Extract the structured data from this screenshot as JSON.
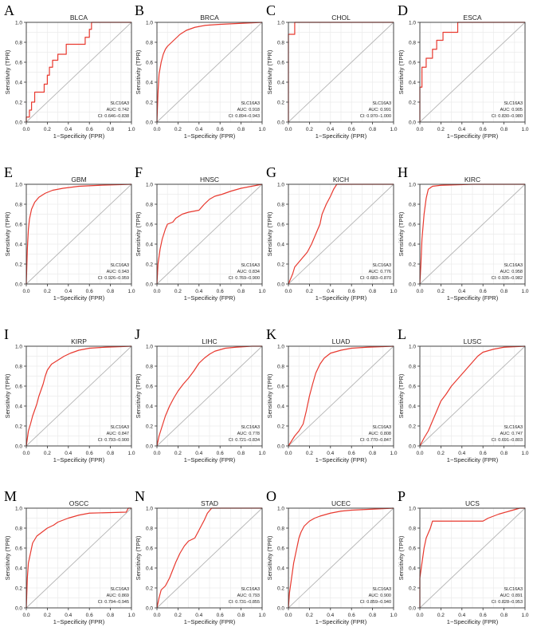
{
  "figure": {
    "xlabel": "1−Specificity (FPR)",
    "ylabel": "Sensitivity (TPR)",
    "ticks": [
      "0.0",
      "0.2",
      "0.4",
      "0.6",
      "0.8",
      "1.0"
    ],
    "gene": "SLC16A3",
    "colors": {
      "curve": "#e8392f",
      "diagonal": "#b5b5b5",
      "grid": "#ebebeb",
      "frame": "#333333"
    }
  },
  "chart_data": [
    {
      "type": "line",
      "letter": "A",
      "title": "BLCA",
      "auc": "AUC: 0.742",
      "ci": "CI: 0.646−0.838",
      "xlim": [
        0,
        1
      ],
      "ylim": [
        0,
        1
      ],
      "points": [
        [
          0,
          0
        ],
        [
          0,
          0.05
        ],
        [
          0.03,
          0.05
        ],
        [
          0.03,
          0.12
        ],
        [
          0.05,
          0.12
        ],
        [
          0.05,
          0.2
        ],
        [
          0.08,
          0.2
        ],
        [
          0.08,
          0.3
        ],
        [
          0.17,
          0.3
        ],
        [
          0.17,
          0.38
        ],
        [
          0.2,
          0.38
        ],
        [
          0.2,
          0.47
        ],
        [
          0.22,
          0.47
        ],
        [
          0.22,
          0.55
        ],
        [
          0.25,
          0.55
        ],
        [
          0.25,
          0.62
        ],
        [
          0.3,
          0.62
        ],
        [
          0.3,
          0.68
        ],
        [
          0.38,
          0.68
        ],
        [
          0.38,
          0.78
        ],
        [
          0.56,
          0.78
        ],
        [
          0.56,
          0.85
        ],
        [
          0.6,
          0.85
        ],
        [
          0.6,
          0.93
        ],
        [
          0.62,
          0.93
        ],
        [
          0.62,
          1
        ],
        [
          1,
          1
        ]
      ]
    },
    {
      "type": "line",
      "letter": "B",
      "title": "BRCA",
      "auc": "AUC: 0.918",
      "ci": "CI: 0.894−0.943",
      "xlim": [
        0,
        1
      ],
      "ylim": [
        0,
        1
      ],
      "points": [
        [
          0,
          0
        ],
        [
          0.01,
          0.3
        ],
        [
          0.02,
          0.48
        ],
        [
          0.04,
          0.6
        ],
        [
          0.06,
          0.68
        ],
        [
          0.08,
          0.73
        ],
        [
          0.1,
          0.76
        ],
        [
          0.14,
          0.8
        ],
        [
          0.18,
          0.84
        ],
        [
          0.22,
          0.88
        ],
        [
          0.28,
          0.92
        ],
        [
          0.36,
          0.95
        ],
        [
          0.46,
          0.97
        ],
        [
          0.6,
          0.98
        ],
        [
          0.8,
          0.99
        ],
        [
          1,
          1
        ]
      ]
    },
    {
      "type": "line",
      "letter": "C",
      "title": "CHOL",
      "auc": "AUC: 0.991",
      "ci": "CI: 0.970−1.000",
      "xlim": [
        0,
        1
      ],
      "ylim": [
        0,
        1
      ],
      "points": [
        [
          0,
          0
        ],
        [
          0,
          0.88
        ],
        [
          0.06,
          0.88
        ],
        [
          0.06,
          1
        ],
        [
          1,
          1
        ]
      ]
    },
    {
      "type": "line",
      "letter": "D",
      "title": "ESCA",
      "auc": "AUC: 0.905",
      "ci": "CI: 0.830−0.980",
      "xlim": [
        0,
        1
      ],
      "ylim": [
        0,
        1
      ],
      "points": [
        [
          0,
          0
        ],
        [
          0,
          0.35
        ],
        [
          0.02,
          0.35
        ],
        [
          0.02,
          0.55
        ],
        [
          0.06,
          0.55
        ],
        [
          0.06,
          0.64
        ],
        [
          0.12,
          0.64
        ],
        [
          0.12,
          0.73
        ],
        [
          0.16,
          0.73
        ],
        [
          0.16,
          0.82
        ],
        [
          0.22,
          0.82
        ],
        [
          0.22,
          0.9
        ],
        [
          0.36,
          0.9
        ],
        [
          0.36,
          1
        ],
        [
          1,
          1
        ]
      ]
    },
    {
      "type": "line",
      "letter": "E",
      "title": "GBM",
      "auc": "AUC: 0.943",
      "ci": "CI: 0.926−0.959",
      "xlim": [
        0,
        1
      ],
      "ylim": [
        0,
        1
      ],
      "points": [
        [
          0,
          0
        ],
        [
          0.01,
          0.35
        ],
        [
          0.02,
          0.55
        ],
        [
          0.03,
          0.65
        ],
        [
          0.05,
          0.75
        ],
        [
          0.08,
          0.82
        ],
        [
          0.12,
          0.87
        ],
        [
          0.18,
          0.91
        ],
        [
          0.25,
          0.94
        ],
        [
          0.35,
          0.96
        ],
        [
          0.5,
          0.98
        ],
        [
          0.7,
          0.99
        ],
        [
          1,
          1
        ]
      ]
    },
    {
      "type": "line",
      "letter": "F",
      "title": "HNSC",
      "auc": "AUC: 0.834",
      "ci": "CI: 0.769−0.900",
      "xlim": [
        0,
        1
      ],
      "ylim": [
        0,
        1
      ],
      "points": [
        [
          0,
          0
        ],
        [
          0.01,
          0.2
        ],
        [
          0.03,
          0.35
        ],
        [
          0.05,
          0.45
        ],
        [
          0.08,
          0.55
        ],
        [
          0.1,
          0.6
        ],
        [
          0.15,
          0.62
        ],
        [
          0.18,
          0.66
        ],
        [
          0.24,
          0.7
        ],
        [
          0.3,
          0.72
        ],
        [
          0.4,
          0.74
        ],
        [
          0.45,
          0.8
        ],
        [
          0.5,
          0.85
        ],
        [
          0.55,
          0.88
        ],
        [
          0.62,
          0.9
        ],
        [
          0.7,
          0.93
        ],
        [
          0.8,
          0.96
        ],
        [
          0.9,
          0.98
        ],
        [
          1,
          1
        ]
      ]
    },
    {
      "type": "line",
      "letter": "G",
      "title": "KICH",
      "auc": "AUC: 0.776",
      "ci": "CI: 0.683−0.870",
      "xlim": [
        0,
        1
      ],
      "ylim": [
        0,
        1
      ],
      "points": [
        [
          0,
          0
        ],
        [
          0.04,
          0.1
        ],
        [
          0.06,
          0.17
        ],
        [
          0.1,
          0.22
        ],
        [
          0.14,
          0.27
        ],
        [
          0.18,
          0.32
        ],
        [
          0.22,
          0.4
        ],
        [
          0.26,
          0.5
        ],
        [
          0.3,
          0.6
        ],
        [
          0.32,
          0.7
        ],
        [
          0.36,
          0.8
        ],
        [
          0.4,
          0.88
        ],
        [
          0.43,
          0.95
        ],
        [
          0.46,
          1
        ],
        [
          1,
          1
        ]
      ]
    },
    {
      "type": "line",
      "letter": "H",
      "title": "KIRC",
      "auc": "AUC: 0.958",
      "ci": "CI: 0.935−0.982",
      "xlim": [
        0,
        1
      ],
      "ylim": [
        0,
        1
      ],
      "points": [
        [
          0,
          0
        ],
        [
          0.01,
          0.2
        ],
        [
          0.02,
          0.45
        ],
        [
          0.04,
          0.7
        ],
        [
          0.06,
          0.86
        ],
        [
          0.08,
          0.95
        ],
        [
          0.12,
          0.98
        ],
        [
          0.2,
          0.99
        ],
        [
          0.5,
          1
        ],
        [
          1,
          1
        ]
      ]
    },
    {
      "type": "line",
      "letter": "I",
      "title": "KIRP",
      "auc": "AUC: 0.847",
      "ci": "CI: 0.793−0.900",
      "xlim": [
        0,
        1
      ],
      "ylim": [
        0,
        1
      ],
      "points": [
        [
          0,
          0
        ],
        [
          0.02,
          0.15
        ],
        [
          0.04,
          0.22
        ],
        [
          0.06,
          0.3
        ],
        [
          0.08,
          0.36
        ],
        [
          0.1,
          0.42
        ],
        [
          0.12,
          0.5
        ],
        [
          0.14,
          0.56
        ],
        [
          0.16,
          0.62
        ],
        [
          0.18,
          0.7
        ],
        [
          0.2,
          0.76
        ],
        [
          0.24,
          0.82
        ],
        [
          0.3,
          0.86
        ],
        [
          0.36,
          0.9
        ],
        [
          0.42,
          0.93
        ],
        [
          0.5,
          0.96
        ],
        [
          0.6,
          0.98
        ],
        [
          0.75,
          0.99
        ],
        [
          1,
          1
        ]
      ]
    },
    {
      "type": "line",
      "letter": "J",
      "title": "LIHC",
      "auc": "AUC: 0.778",
      "ci": "CI: 0.721−0.834",
      "xlim": [
        0,
        1
      ],
      "ylim": [
        0,
        1
      ],
      "points": [
        [
          0,
          0
        ],
        [
          0.02,
          0.1
        ],
        [
          0.05,
          0.2
        ],
        [
          0.08,
          0.3
        ],
        [
          0.12,
          0.4
        ],
        [
          0.16,
          0.48
        ],
        [
          0.2,
          0.55
        ],
        [
          0.25,
          0.62
        ],
        [
          0.3,
          0.68
        ],
        [
          0.35,
          0.75
        ],
        [
          0.4,
          0.83
        ],
        [
          0.45,
          0.88
        ],
        [
          0.5,
          0.92
        ],
        [
          0.55,
          0.95
        ],
        [
          0.65,
          0.98
        ],
        [
          0.75,
          0.99
        ],
        [
          0.9,
          1
        ],
        [
          1,
          1
        ]
      ]
    },
    {
      "type": "line",
      "letter": "K",
      "title": "LUAD",
      "auc": "AUC: 0.808",
      "ci": "CI: 0.770−0.847",
      "xlim": [
        0,
        1
      ],
      "ylim": [
        0,
        1
      ],
      "points": [
        [
          0,
          0
        ],
        [
          0.03,
          0.05
        ],
        [
          0.06,
          0.1
        ],
        [
          0.1,
          0.15
        ],
        [
          0.14,
          0.22
        ],
        [
          0.17,
          0.35
        ],
        [
          0.2,
          0.5
        ],
        [
          0.23,
          0.62
        ],
        [
          0.26,
          0.73
        ],
        [
          0.3,
          0.82
        ],
        [
          0.34,
          0.88
        ],
        [
          0.4,
          0.93
        ],
        [
          0.5,
          0.96
        ],
        [
          0.6,
          0.98
        ],
        [
          0.75,
          0.99
        ],
        [
          1,
          1
        ]
      ]
    },
    {
      "type": "line",
      "letter": "L",
      "title": "LUSC",
      "auc": "AUC: 0.747",
      "ci": "CI: 0.691−0.803",
      "xlim": [
        0,
        1
      ],
      "ylim": [
        0,
        1
      ],
      "points": [
        [
          0,
          0
        ],
        [
          0.04,
          0.08
        ],
        [
          0.08,
          0.15
        ],
        [
          0.12,
          0.25
        ],
        [
          0.16,
          0.35
        ],
        [
          0.2,
          0.45
        ],
        [
          0.25,
          0.52
        ],
        [
          0.3,
          0.6
        ],
        [
          0.35,
          0.66
        ],
        [
          0.4,
          0.72
        ],
        [
          0.45,
          0.78
        ],
        [
          0.5,
          0.84
        ],
        [
          0.55,
          0.9
        ],
        [
          0.6,
          0.94
        ],
        [
          0.7,
          0.97
        ],
        [
          0.8,
          0.99
        ],
        [
          1,
          1
        ]
      ]
    },
    {
      "type": "line",
      "letter": "M",
      "title": "OSCC",
      "auc": "AUC: 0.869",
      "ci": "CI: 0.794−0.945",
      "xlim": [
        0,
        1
      ],
      "ylim": [
        0,
        1
      ],
      "points": [
        [
          0,
          0
        ],
        [
          0.01,
          0.3
        ],
        [
          0.02,
          0.45
        ],
        [
          0.04,
          0.55
        ],
        [
          0.06,
          0.65
        ],
        [
          0.1,
          0.72
        ],
        [
          0.15,
          0.76
        ],
        [
          0.2,
          0.8
        ],
        [
          0.26,
          0.83
        ],
        [
          0.3,
          0.86
        ],
        [
          0.4,
          0.9
        ],
        [
          0.5,
          0.93
        ],
        [
          0.6,
          0.95
        ],
        [
          0.95,
          0.96
        ],
        [
          0.97,
          1
        ],
        [
          1,
          1
        ]
      ]
    },
    {
      "type": "line",
      "letter": "N",
      "title": "STAD",
      "auc": "AUC: 0.793",
      "ci": "CI: 0.731−0.855",
      "xlim": [
        0,
        1
      ],
      "ylim": [
        0,
        1
      ],
      "points": [
        [
          0,
          0
        ],
        [
          0.02,
          0.1
        ],
        [
          0.04,
          0.18
        ],
        [
          0.08,
          0.22
        ],
        [
          0.12,
          0.3
        ],
        [
          0.15,
          0.38
        ],
        [
          0.18,
          0.46
        ],
        [
          0.22,
          0.55
        ],
        [
          0.26,
          0.62
        ],
        [
          0.3,
          0.67
        ],
        [
          0.36,
          0.7
        ],
        [
          0.4,
          0.78
        ],
        [
          0.45,
          0.88
        ],
        [
          0.48,
          0.95
        ],
        [
          0.52,
          1
        ],
        [
          1,
          1
        ]
      ]
    },
    {
      "type": "line",
      "letter": "O",
      "title": "UCEC",
      "auc": "AUC: 0.900",
      "ci": "CI: 0.859−0.940",
      "xlim": [
        0,
        1
      ],
      "ylim": [
        0,
        1
      ],
      "points": [
        [
          0,
          0
        ],
        [
          0.01,
          0.15
        ],
        [
          0.03,
          0.3
        ],
        [
          0.05,
          0.45
        ],
        [
          0.08,
          0.6
        ],
        [
          0.1,
          0.7
        ],
        [
          0.12,
          0.76
        ],
        [
          0.15,
          0.82
        ],
        [
          0.2,
          0.87
        ],
        [
          0.25,
          0.9
        ],
        [
          0.3,
          0.92
        ],
        [
          0.4,
          0.95
        ],
        [
          0.5,
          0.97
        ],
        [
          0.6,
          0.98
        ],
        [
          0.8,
          0.99
        ],
        [
          1,
          1
        ]
      ]
    },
    {
      "type": "line",
      "letter": "P",
      "title": "UCS",
      "auc": "AUC: 0.891",
      "ci": "CI: 0.828−0.953",
      "xlim": [
        0,
        1
      ],
      "ylim": [
        0,
        1
      ],
      "points": [
        [
          0,
          0
        ],
        [
          0,
          0.3
        ],
        [
          0.02,
          0.45
        ],
        [
          0.04,
          0.6
        ],
        [
          0.06,
          0.7
        ],
        [
          0.08,
          0.75
        ],
        [
          0.1,
          0.8
        ],
        [
          0.12,
          0.87
        ],
        [
          0.6,
          0.87
        ],
        [
          0.65,
          0.9
        ],
        [
          0.75,
          0.94
        ],
        [
          0.85,
          0.97
        ],
        [
          0.95,
          1
        ],
        [
          1,
          1
        ]
      ]
    }
  ]
}
